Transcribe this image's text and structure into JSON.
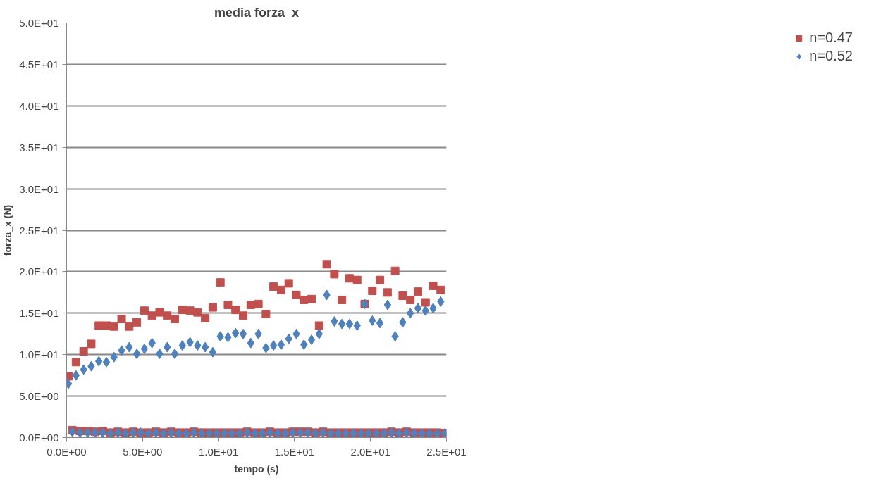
{
  "chart_data": {
    "type": "scatter",
    "title": "media forza_x",
    "xlabel": "tempo (s)",
    "ylabel": "forza_x (N)",
    "x": [
      0.12,
      0.62,
      1.12,
      1.62,
      2.12,
      2.62,
      3.12,
      3.62,
      4.12,
      4.62,
      5.12,
      5.62,
      6.12,
      6.62,
      7.12,
      7.62,
      8.12,
      8.62,
      9.12,
      9.62,
      10.12,
      10.62,
      11.12,
      11.62,
      12.12,
      12.62,
      13.12,
      13.62,
      14.12,
      14.62,
      15.12,
      15.62,
      16.12,
      16.62,
      17.12,
      17.62,
      18.12,
      18.62,
      19.12,
      19.62,
      20.12,
      20.62,
      21.12,
      21.62,
      22.12,
      22.62,
      23.12,
      23.62,
      24.12,
      24.62,
      0.38,
      0.88,
      1.38,
      1.88,
      2.38,
      2.88,
      3.38,
      3.88,
      4.38,
      4.88,
      5.38,
      5.88,
      6.38,
      6.88,
      7.38,
      7.88,
      8.38,
      8.88,
      9.38,
      9.88,
      10.38,
      10.88,
      11.38,
      11.88,
      12.38,
      12.88,
      13.38,
      13.88,
      14.38,
      14.88,
      15.38,
      15.88,
      16.38,
      16.88,
      17.38,
      17.88,
      18.38,
      18.88,
      19.38,
      19.88,
      20.38,
      20.88,
      21.38,
      21.88,
      22.38,
      22.88,
      23.38,
      23.88,
      24.38,
      24.88
    ],
    "series": [
      {
        "name": "n=0.47",
        "color": "#c0504d",
        "marker": "square",
        "values": [
          7.4,
          9.1,
          10.4,
          11.3,
          13.5,
          13.5,
          13.4,
          14.3,
          13.4,
          13.9,
          15.3,
          14.7,
          15.1,
          14.7,
          14.3,
          15.4,
          15.3,
          15.1,
          14.4,
          15.7,
          18.7,
          16.0,
          15.4,
          14.7,
          16.0,
          16.1,
          14.9,
          18.2,
          17.8,
          18.6,
          17.2,
          16.6,
          16.7,
          13.5,
          20.9,
          19.7,
          16.6,
          19.2,
          19.0,
          16.1,
          17.7,
          19.0,
          17.5,
          20.1,
          17.1,
          16.6,
          17.6,
          16.3,
          18.3,
          17.8,
          0.9,
          0.8,
          0.8,
          0.7,
          0.8,
          0.6,
          0.7,
          0.6,
          0.7,
          0.6,
          0.6,
          0.7,
          0.6,
          0.7,
          0.6,
          0.6,
          0.7,
          0.6,
          0.6,
          0.6,
          0.6,
          0.6,
          0.6,
          0.7,
          0.6,
          0.6,
          0.7,
          0.6,
          0.6,
          0.7,
          0.7,
          0.7,
          0.6,
          0.7,
          0.6,
          0.6,
          0.6,
          0.6,
          0.6,
          0.6,
          0.6,
          0.6,
          0.7,
          0.6,
          0.7,
          0.6,
          0.6,
          0.6,
          0.6,
          0.5
        ]
      },
      {
        "name": "n=0.52",
        "color": "#4f81bd",
        "marker": "diamond",
        "values": [
          6.5,
          7.5,
          8.2,
          8.6,
          9.2,
          9.1,
          9.7,
          10.5,
          10.9,
          10.1,
          10.7,
          11.4,
          10.1,
          10.9,
          10.1,
          11.1,
          11.5,
          11.1,
          10.9,
          10.3,
          12.2,
          12.1,
          12.6,
          12.5,
          11.4,
          12.5,
          10.8,
          11.1,
          11.2,
          11.9,
          12.5,
          11.2,
          11.8,
          12.5,
          17.2,
          14.0,
          13.7,
          13.7,
          13.5,
          16.1,
          14.1,
          13.8,
          16.0,
          12.2,
          13.9,
          15.0,
          15.6,
          15.3,
          15.6,
          16.4,
          0.7,
          0.6,
          0.6,
          0.6,
          0.6,
          0.5,
          0.6,
          0.5,
          0.6,
          0.6,
          0.5,
          0.6,
          0.5,
          0.6,
          0.5,
          0.5,
          0.6,
          0.5,
          0.5,
          0.5,
          0.5,
          0.5,
          0.5,
          0.6,
          0.5,
          0.5,
          0.6,
          0.5,
          0.5,
          0.6,
          0.6,
          0.6,
          0.5,
          0.6,
          0.5,
          0.5,
          0.5,
          0.5,
          0.5,
          0.5,
          0.5,
          0.5,
          0.6,
          0.5,
          0.6,
          0.5,
          0.5,
          0.5,
          0.5,
          0.5
        ]
      }
    ],
    "xlim": [
      0,
      25
    ],
    "ylim": [
      0,
      50
    ],
    "xticks": [
      {
        "value": 0,
        "label": "0.0E+00"
      },
      {
        "value": 5,
        "label": "5.0E+00"
      },
      {
        "value": 10,
        "label": "1.0E+01"
      },
      {
        "value": 15,
        "label": "1.5E+01"
      },
      {
        "value": 20,
        "label": "2.0E+01"
      },
      {
        "value": 25,
        "label": "2.5E+01"
      }
    ],
    "yticks": [
      {
        "value": 0,
        "label": "0.0E+00"
      },
      {
        "value": 5,
        "label": "5.0E+00"
      },
      {
        "value": 10,
        "label": "1.0E+01"
      },
      {
        "value": 15,
        "label": "1.5E+01"
      },
      {
        "value": 20,
        "label": "2.0E+01"
      },
      {
        "value": 25,
        "label": "2.5E+01"
      },
      {
        "value": 30,
        "label": "3.0E+01"
      },
      {
        "value": 35,
        "label": "3.5E+01"
      },
      {
        "value": 40,
        "label": "4.0E+01"
      },
      {
        "value": 45,
        "label": "4.5E+01"
      },
      {
        "value": 50,
        "label": "5.0E+01"
      }
    ],
    "grid": "y",
    "legend": "right"
  }
}
